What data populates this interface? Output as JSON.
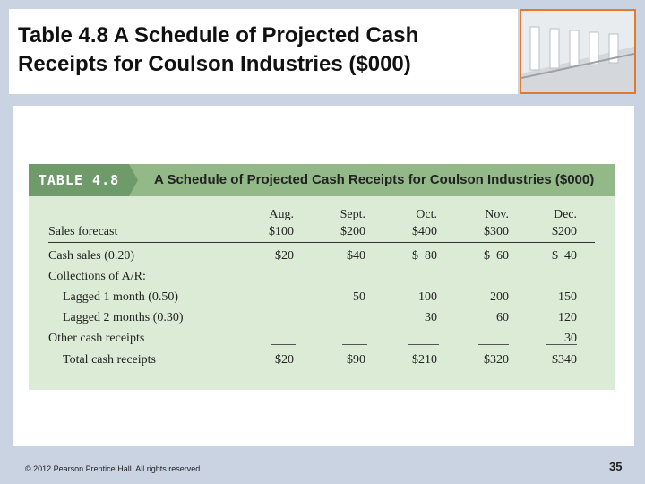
{
  "slide": {
    "title": "Table 4.8 A Schedule of Projected Cash\nReceipts for Coulson Industries ($000)",
    "footer": "© 2012 Pearson Prentice Hall. All rights reserved.",
    "page_number": "35"
  },
  "table": {
    "tag": "TABLE 4.8",
    "caption": "A Schedule of Projected Cash Receipts for Coulson Industries ($000)",
    "months": [
      "Aug.",
      "Sept.",
      "Oct.",
      "Nov.",
      "Dec."
    ],
    "sales_forecast_label": "Sales forecast",
    "sales_forecast": [
      "$100",
      "$200",
      "$400",
      "$300",
      "$200"
    ],
    "rows": [
      {
        "label": "Cash sales (0.20)",
        "values": [
          "$20",
          "$40",
          "$  80",
          "$  60",
          "$  40"
        ]
      },
      {
        "label": "Collections of A/R:",
        "values": [
          "",
          "",
          "",
          "",
          ""
        ]
      },
      {
        "label": "Lagged 1 month (0.50)",
        "values": [
          "",
          "50",
          "100",
          "200",
          "150"
        ]
      },
      {
        "label": "Lagged 2 months (0.30)",
        "values": [
          "",
          "",
          "30",
          "60",
          "120"
        ]
      },
      {
        "label": "Other cash receipts",
        "values": [
          "",
          "",
          "",
          "",
          "30"
        ]
      },
      {
        "label": "Total cash receipts",
        "values": [
          "$20",
          "$90",
          "$210",
          "$320",
          "$340"
        ]
      }
    ]
  },
  "colors": {
    "background": "#c9d3e2",
    "table_header": "#93b989",
    "table_body": "#dcebd6",
    "photo_border": "#e07b2e"
  }
}
